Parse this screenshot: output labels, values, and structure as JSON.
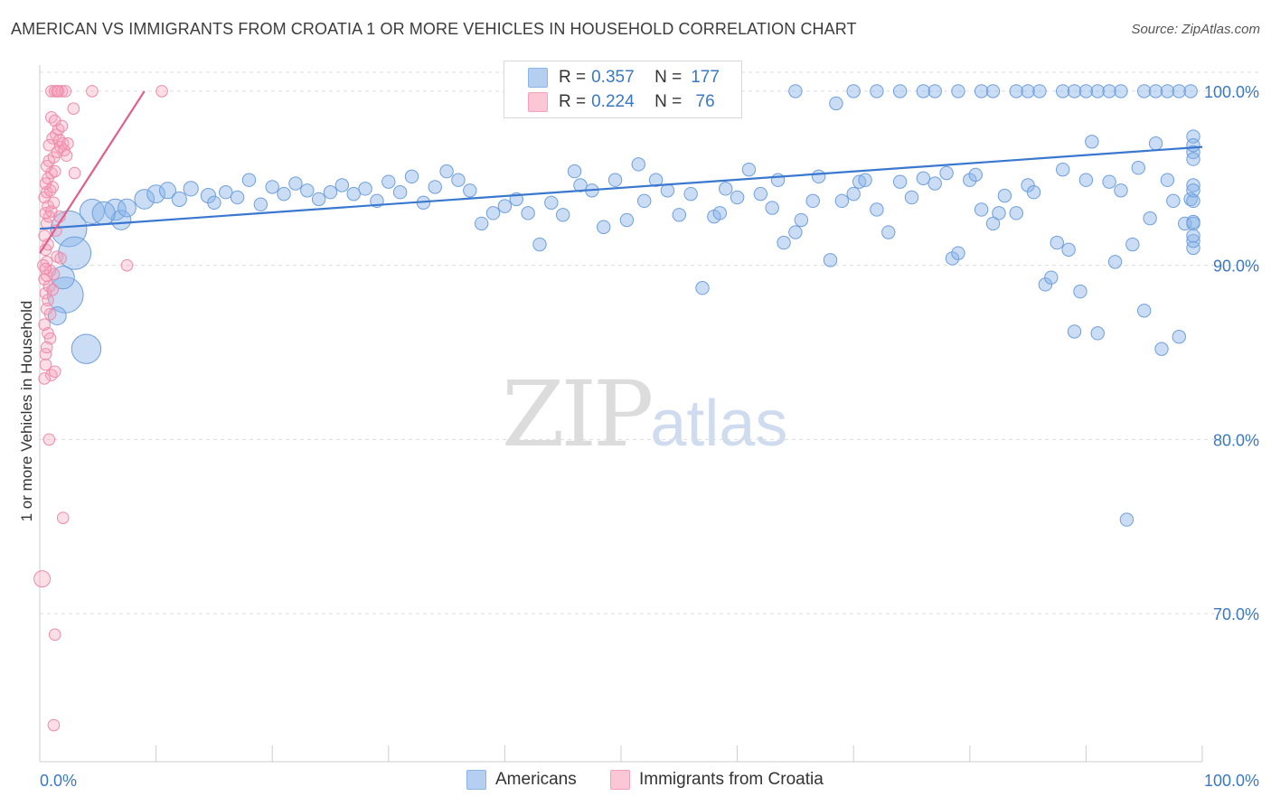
{
  "title": "AMERICAN VS IMMIGRANTS FROM CROATIA 1 OR MORE VEHICLES IN HOUSEHOLD CORRELATION CHART",
  "source": "Source: ZipAtlas.com",
  "watermark": {
    "zip": "ZIP",
    "atlas": "atlas"
  },
  "legend": {
    "americans": {
      "r_label": "R =",
      "r_value": "0.357",
      "n_label": "N =",
      "n_value": "177",
      "color": "#8ab4e8"
    },
    "croatia": {
      "r_label": "R =",
      "r_value": "0.224",
      "n_label": "N =",
      "n_value": " 76",
      "color": "#f5a0bb"
    }
  },
  "bottom_legend": {
    "americans": "Americans",
    "croatia": "Immigrants from Croatia"
  },
  "chart_data": {
    "type": "scatter",
    "ylabel": "1 or more Vehicles in Household",
    "xlabel": "",
    "xlim": [
      0,
      100
    ],
    "ylim": [
      61.5,
      101.5
    ],
    "x_tick_labels": [
      "0.0%",
      "100.0%"
    ],
    "y_ticks": [
      70,
      80,
      90,
      100
    ],
    "y_tick_labels": [
      "70.0%",
      "80.0%",
      "90.0%",
      "100.0%"
    ],
    "grid": true,
    "series": [
      {
        "name": "Americans",
        "color": "#8ab4e8",
        "trend": {
          "x": [
            0,
            100
          ],
          "y": [
            92.1,
            96.8
          ],
          "color": "#3a78d0"
        },
        "points": [
          [
            2.5,
            92.1,
            2.2
          ],
          [
            3.0,
            90.7,
            2.0
          ],
          [
            2.2,
            88.3,
            2.2
          ],
          [
            4.0,
            85.2,
            1.8
          ],
          [
            2.0,
            89.3,
            1.4
          ],
          [
            1.5,
            87.1,
            1.1
          ],
          [
            4.5,
            93.1,
            1.5
          ],
          [
            6.5,
            93.2,
            1.3
          ],
          [
            7.0,
            92.6,
            1.2
          ],
          [
            5.5,
            93.0,
            1.4
          ],
          [
            7.5,
            93.3,
            1.1
          ],
          [
            9.0,
            93.8,
            1.2
          ],
          [
            10.0,
            94.1,
            1.1
          ],
          [
            11.0,
            94.3,
            1.0
          ],
          [
            12.0,
            93.8,
            0.9
          ],
          [
            13.0,
            94.4,
            0.9
          ],
          [
            14.5,
            94.0,
            0.9
          ],
          [
            15.0,
            93.6,
            0.8
          ],
          [
            16.0,
            94.2,
            0.8
          ],
          [
            17.0,
            93.9,
            0.8
          ],
          [
            18.0,
            94.9,
            0.8
          ],
          [
            19.0,
            93.5,
            0.8
          ],
          [
            20.0,
            94.5,
            0.8
          ],
          [
            21.0,
            94.1,
            0.8
          ],
          [
            22.0,
            94.7,
            0.8
          ],
          [
            23.0,
            94.3,
            0.8
          ],
          [
            24.0,
            93.8,
            0.8
          ],
          [
            25.0,
            94.2,
            0.8
          ],
          [
            26.0,
            94.6,
            0.8
          ],
          [
            27.0,
            94.1,
            0.8
          ],
          [
            28.0,
            94.4,
            0.8
          ],
          [
            29.0,
            93.7,
            0.8
          ],
          [
            30.0,
            94.8,
            0.8
          ],
          [
            31.0,
            94.2,
            0.8
          ],
          [
            32.0,
            95.1,
            0.8
          ],
          [
            33.0,
            93.6,
            0.8
          ],
          [
            34.0,
            94.5,
            0.8
          ],
          [
            35.0,
            95.4,
            0.8
          ],
          [
            36.0,
            94.9,
            0.8
          ],
          [
            37.0,
            94.3,
            0.8
          ],
          [
            38.0,
            92.4,
            0.8
          ],
          [
            39.0,
            93.0,
            0.8
          ],
          [
            40.0,
            93.4,
            0.8
          ],
          [
            41.0,
            93.8,
            0.8
          ],
          [
            42.0,
            93.0,
            0.8
          ],
          [
            43.0,
            91.2,
            0.8
          ],
          [
            44.0,
            93.6,
            0.8
          ],
          [
            45.0,
            92.9,
            0.8
          ],
          [
            46.0,
            95.4,
            0.8
          ],
          [
            46.5,
            94.6,
            0.8
          ],
          [
            47.5,
            94.3,
            0.8
          ],
          [
            48.5,
            92.2,
            0.8
          ],
          [
            49.5,
            94.9,
            0.8
          ],
          [
            50.5,
            92.6,
            0.8
          ],
          [
            51.5,
            95.8,
            0.8
          ],
          [
            52.0,
            93.7,
            0.8
          ],
          [
            53.0,
            94.9,
            0.8
          ],
          [
            54.0,
            94.3,
            0.8
          ],
          [
            55.0,
            92.9,
            0.8
          ],
          [
            56.0,
            94.1,
            0.8
          ],
          [
            57.0,
            88.7,
            0.8
          ],
          [
            58.0,
            92.8,
            0.8
          ],
          [
            58.5,
            93.0,
            0.8
          ],
          [
            59.0,
            94.4,
            0.8
          ],
          [
            60.0,
            93.9,
            0.8
          ],
          [
            61.0,
            95.5,
            0.8
          ],
          [
            62.0,
            94.1,
            0.8
          ],
          [
            63.0,
            93.3,
            0.8
          ],
          [
            63.5,
            94.9,
            0.8
          ],
          [
            64.0,
            91.3,
            0.8
          ],
          [
            65.0,
            91.9,
            0.8
          ],
          [
            65.5,
            92.6,
            0.8
          ],
          [
            66.5,
            93.7,
            0.8
          ],
          [
            67.0,
            95.1,
            0.8
          ],
          [
            68.0,
            90.3,
            0.8
          ],
          [
            69.0,
            93.7,
            0.8
          ],
          [
            70.0,
            94.1,
            0.8
          ],
          [
            70.5,
            94.8,
            0.8
          ],
          [
            71.0,
            94.9,
            0.8
          ],
          [
            72.0,
            93.2,
            0.8
          ],
          [
            73.0,
            91.9,
            0.8
          ],
          [
            74.0,
            94.8,
            0.8
          ],
          [
            75.0,
            93.9,
            0.8
          ],
          [
            76.0,
            95.0,
            0.8
          ],
          [
            77.0,
            94.7,
            0.8
          ],
          [
            78.0,
            95.3,
            0.8
          ],
          [
            78.5,
            90.4,
            0.8
          ],
          [
            79.0,
            90.7,
            0.8
          ],
          [
            80.0,
            94.9,
            0.8
          ],
          [
            80.5,
            95.2,
            0.8
          ],
          [
            81.0,
            93.2,
            0.8
          ],
          [
            82.0,
            92.4,
            0.8
          ],
          [
            82.5,
            93.0,
            0.8
          ],
          [
            83.0,
            94.0,
            0.8
          ],
          [
            84.0,
            93.0,
            0.8
          ],
          [
            85.0,
            94.6,
            0.8
          ],
          [
            85.5,
            94.2,
            0.8
          ],
          [
            86.5,
            88.9,
            0.8
          ],
          [
            87.0,
            89.3,
            0.8
          ],
          [
            87.5,
            91.3,
            0.8
          ],
          [
            88.0,
            95.5,
            0.8
          ],
          [
            88.5,
            90.9,
            0.8
          ],
          [
            89.0,
            86.2,
            0.8
          ],
          [
            89.5,
            88.5,
            0.8
          ],
          [
            90.0,
            94.9,
            0.8
          ],
          [
            90.5,
            97.1,
            0.8
          ],
          [
            91.0,
            86.1,
            0.8
          ],
          [
            92.0,
            94.8,
            0.8
          ],
          [
            92.5,
            90.2,
            0.8
          ],
          [
            93.0,
            94.3,
            0.8
          ],
          [
            93.5,
            75.4,
            0.8
          ],
          [
            94.0,
            91.2,
            0.8
          ],
          [
            94.5,
            95.6,
            0.8
          ],
          [
            95.0,
            87.4,
            0.8
          ],
          [
            95.5,
            92.7,
            0.8
          ],
          [
            96.0,
            97.0,
            0.8
          ],
          [
            96.5,
            85.2,
            0.8
          ],
          [
            97.0,
            94.9,
            0.8
          ],
          [
            97.5,
            93.7,
            0.8
          ],
          [
            98.0,
            85.9,
            0.8
          ],
          [
            98.5,
            92.4,
            0.8
          ],
          [
            99.0,
            93.8,
            0.8
          ],
          [
            99.5,
            96.5,
            0.8
          ],
          [
            100.0,
            92.5,
            0.8
          ],
          [
            100.5,
            91.0,
            0.8
          ],
          [
            101.0,
            94.6,
            0.8
          ],
          [
            101.5,
            92.4,
            0.8
          ],
          [
            102.0,
            93.7,
            0.8
          ],
          [
            102.5,
            97.4,
            0.8
          ],
          [
            103.0,
            91.4,
            0.8
          ],
          [
            103.5,
            96.1,
            0.8
          ],
          [
            104.0,
            96.9,
            0.8
          ],
          [
            104.5,
            94.3,
            0.8
          ],
          [
            105.0,
            91.7,
            0.8
          ],
          [
            65.0,
            100.0,
            0.8
          ],
          [
            68.5,
            99.3,
            0.8
          ],
          [
            70.0,
            100.0,
            0.8
          ],
          [
            72.0,
            100.0,
            0.8
          ],
          [
            74.0,
            100.0,
            0.8
          ],
          [
            76.0,
            100.0,
            0.8
          ],
          [
            77.0,
            100.0,
            0.8
          ],
          [
            79.0,
            100.0,
            0.8
          ],
          [
            81.0,
            100.0,
            0.8
          ],
          [
            82.0,
            100.0,
            0.8
          ],
          [
            84.0,
            100.0,
            0.8
          ],
          [
            85.0,
            100.0,
            0.8
          ],
          [
            86.0,
            100.0,
            0.8
          ],
          [
            88.0,
            100.0,
            0.8
          ],
          [
            89.0,
            100.0,
            0.8
          ],
          [
            90.0,
            100.0,
            0.8
          ],
          [
            91.0,
            100.0,
            0.8
          ],
          [
            92.0,
            100.0,
            0.8
          ],
          [
            93.0,
            100.0,
            0.8
          ],
          [
            95.0,
            100.0,
            0.8
          ],
          [
            96.0,
            100.0,
            0.8
          ],
          [
            97.0,
            100.0,
            0.8
          ],
          [
            98.0,
            100.0,
            0.8
          ],
          [
            99.0,
            100.0,
            0.8
          ]
        ]
      },
      {
        "name": "Immigrants from Croatia",
        "color": "#f5a0bb",
        "trend": {
          "x": [
            0,
            9.0
          ],
          "y": [
            90.7,
            100.0
          ],
          "color": "#e0608a"
        },
        "points": [
          [
            0.2,
            72.0,
            1.0
          ],
          [
            1.3,
            68.8,
            0.7
          ],
          [
            1.2,
            63.6,
            0.7
          ],
          [
            2.0,
            75.5,
            0.7
          ],
          [
            0.8,
            80.0,
            0.7
          ],
          [
            1.0,
            83.7,
            0.7
          ],
          [
            1.3,
            83.9,
            0.7
          ],
          [
            0.5,
            84.3,
            0.7
          ],
          [
            0.4,
            83.5,
            0.7
          ],
          [
            0.5,
            84.9,
            0.7
          ],
          [
            0.7,
            86.1,
            0.7
          ],
          [
            0.6,
            87.5,
            0.7
          ],
          [
            0.7,
            88.0,
            0.7
          ],
          [
            0.5,
            88.4,
            0.7
          ],
          [
            0.8,
            88.8,
            0.7
          ],
          [
            0.4,
            89.2,
            0.7
          ],
          [
            0.6,
            89.4,
            0.7
          ],
          [
            0.9,
            89.7,
            0.7
          ],
          [
            1.2,
            89.5,
            0.7
          ],
          [
            1.5,
            90.5,
            0.7
          ],
          [
            0.6,
            90.2,
            0.7
          ],
          [
            0.5,
            90.9,
            0.7
          ],
          [
            0.7,
            91.2,
            0.7
          ],
          [
            0.4,
            91.7,
            0.7
          ],
          [
            0.6,
            92.4,
            0.7
          ],
          [
            0.8,
            92.8,
            0.7
          ],
          [
            0.5,
            93.0,
            0.7
          ],
          [
            0.7,
            93.4,
            0.7
          ],
          [
            1.0,
            93.1,
            0.7
          ],
          [
            1.2,
            93.6,
            0.7
          ],
          [
            0.4,
            93.9,
            0.7
          ],
          [
            0.6,
            94.2,
            0.7
          ],
          [
            0.9,
            94.3,
            0.7
          ],
          [
            1.1,
            94.5,
            0.7
          ],
          [
            0.5,
            94.7,
            0.7
          ],
          [
            0.7,
            95.0,
            0.7
          ],
          [
            1.0,
            95.3,
            0.7
          ],
          [
            1.3,
            95.4,
            0.7
          ],
          [
            0.6,
            95.7,
            0.7
          ],
          [
            0.8,
            96.0,
            0.7
          ],
          [
            1.2,
            96.2,
            0.7
          ],
          [
            1.5,
            96.5,
            0.7
          ],
          [
            1.8,
            96.8,
            0.7
          ],
          [
            2.0,
            97.0,
            0.7
          ],
          [
            1.1,
            97.3,
            0.7
          ],
          [
            1.4,
            97.5,
            0.7
          ],
          [
            1.7,
            97.2,
            0.7
          ],
          [
            2.1,
            96.6,
            0.7
          ],
          [
            2.4,
            97.0,
            0.7
          ],
          [
            1.6,
            97.8,
            0.7
          ],
          [
            1.9,
            98.0,
            0.7
          ],
          [
            1.0,
            98.5,
            0.7
          ],
          [
            1.3,
            98.3,
            0.7
          ],
          [
            2.9,
            99.0,
            0.7
          ],
          [
            3.0,
            95.3,
            0.7
          ],
          [
            1.0,
            100.0,
            0.7
          ],
          [
            1.3,
            100.0,
            0.7
          ],
          [
            1.6,
            100.0,
            0.7
          ],
          [
            1.9,
            100.0,
            0.7
          ],
          [
            2.2,
            100.0,
            0.7
          ],
          [
            1.5,
            100.0,
            0.7
          ],
          [
            4.5,
            100.0,
            0.7
          ],
          [
            10.5,
            100.0,
            0.7
          ],
          [
            7.5,
            90.0,
            0.7
          ],
          [
            1.8,
            90.4,
            0.7
          ],
          [
            0.3,
            90.0,
            0.7
          ],
          [
            0.5,
            89.8,
            0.7
          ],
          [
            1.1,
            88.6,
            0.7
          ],
          [
            0.9,
            87.2,
            0.7
          ],
          [
            0.4,
            86.6,
            0.7
          ],
          [
            0.9,
            85.8,
            0.7
          ],
          [
            0.6,
            85.3,
            0.7
          ],
          [
            1.4,
            92.0,
            0.7
          ],
          [
            1.7,
            92.8,
            0.7
          ],
          [
            2.3,
            96.3,
            0.7
          ],
          [
            0.8,
            96.9,
            0.7
          ]
        ]
      }
    ]
  }
}
